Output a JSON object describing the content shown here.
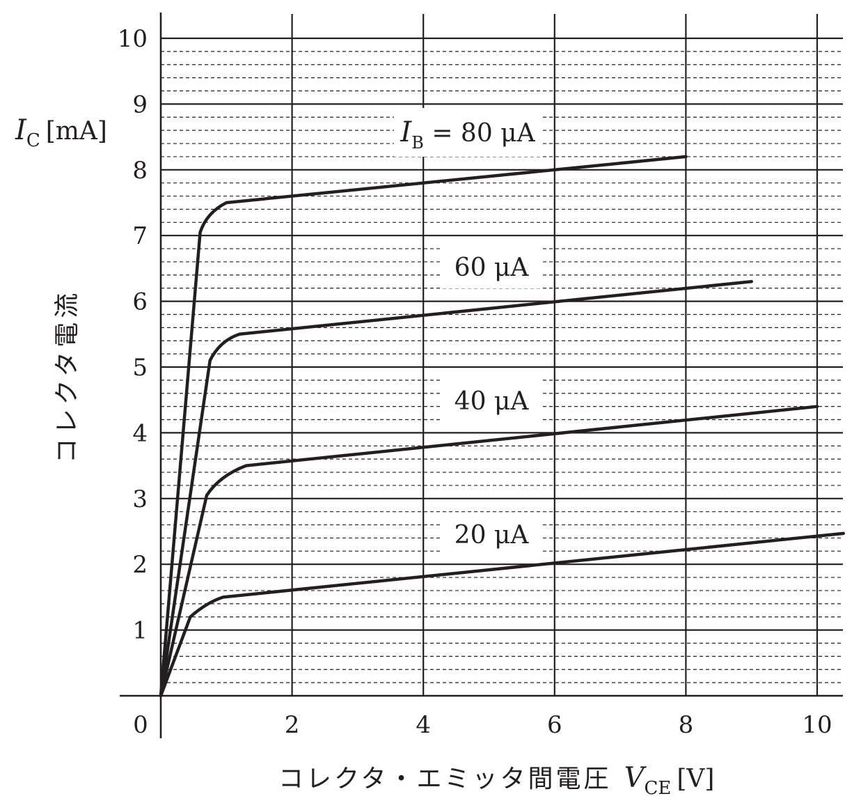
{
  "chart_data": {
    "type": "line",
    "xlabel": "コレクタ・エミッタ間電圧",
    "xlabel_symbol": "V",
    "xlabel_sub": "CE",
    "xlabel_unit": "[V]",
    "ylabel": "コレクタ電流",
    "ylabel_symbol": "I",
    "ylabel_sub": "C",
    "ylabel_unit": "[mA]",
    "xlim": [
      0,
      10.4
    ],
    "ylim": [
      0,
      10
    ],
    "x_ticks": [
      "0",
      "2",
      "4",
      "6",
      "8",
      "10"
    ],
    "y_ticks": [
      "1",
      "2",
      "3",
      "4",
      "5",
      "6",
      "7",
      "8",
      "9",
      "10"
    ],
    "origin_label": "0",
    "grid": {
      "major": true,
      "minor_dashed": true,
      "minor_step_y": 0.2
    },
    "series": [
      {
        "name": "I_B = 80 μA",
        "label_parts": {
          "symbol": "I",
          "sub": "B",
          "text": " = 80 μA"
        },
        "x": [
          0,
          0.6,
          0.7,
          1.0,
          8.0
        ],
        "y": [
          0,
          7.05,
          7.35,
          7.5,
          8.2
        ]
      },
      {
        "name": "60 μA",
        "label_parts": {
          "symbol": "",
          "sub": "",
          "text": "60 μA"
        },
        "x": [
          0,
          0.75,
          0.9,
          1.2,
          9.0
        ],
        "y": [
          0,
          5.1,
          5.4,
          5.5,
          6.3
        ]
      },
      {
        "name": "40 μA",
        "label_parts": {
          "symbol": "",
          "sub": "",
          "text": "40 μA"
        },
        "x": [
          0,
          0.7,
          0.9,
          1.3,
          10.0
        ],
        "y": [
          0,
          3.05,
          3.35,
          3.5,
          4.4
        ]
      },
      {
        "name": "20 μA",
        "label_parts": {
          "symbol": "",
          "sub": "",
          "text": "20 μA"
        },
        "x": [
          0,
          0.45,
          0.7,
          0.95,
          10.4
        ],
        "y": [
          0,
          1.2,
          1.42,
          1.5,
          2.47
        ]
      }
    ]
  }
}
